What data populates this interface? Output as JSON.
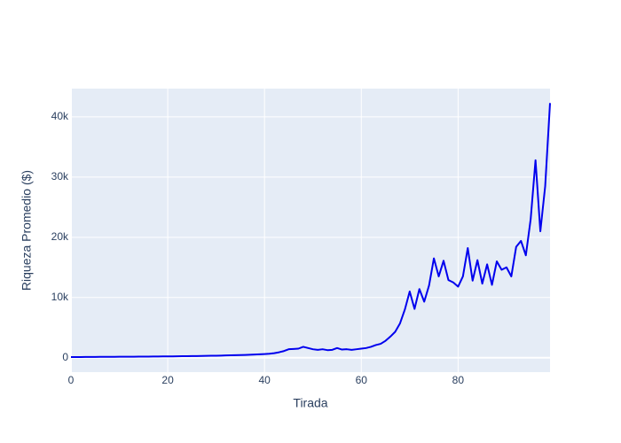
{
  "chart_data": {
    "type": "line",
    "xlabel": "Tirada",
    "ylabel": "Riqueza Promedio ($)",
    "x": [
      0,
      1,
      2,
      3,
      4,
      5,
      6,
      7,
      8,
      9,
      10,
      11,
      12,
      13,
      14,
      15,
      16,
      17,
      18,
      19,
      20,
      21,
      22,
      23,
      24,
      25,
      26,
      27,
      28,
      29,
      30,
      31,
      32,
      33,
      34,
      35,
      36,
      37,
      38,
      39,
      40,
      41,
      42,
      43,
      44,
      45,
      46,
      47,
      48,
      49,
      50,
      51,
      52,
      53,
      54,
      55,
      56,
      57,
      58,
      59,
      60,
      61,
      62,
      63,
      64,
      65,
      66,
      67,
      68,
      69,
      70,
      71,
      72,
      73,
      74,
      75,
      76,
      77,
      78,
      79,
      80,
      81,
      82,
      83,
      84,
      85,
      86,
      87,
      88,
      89,
      90,
      91,
      92,
      93,
      94,
      95,
      96,
      97,
      98,
      99
    ],
    "values": [
      100,
      105,
      110,
      115,
      120,
      125,
      130,
      135,
      140,
      145,
      150,
      155,
      160,
      165,
      170,
      180,
      185,
      190,
      200,
      205,
      210,
      220,
      230,
      240,
      250,
      260,
      270,
      290,
      300,
      320,
      330,
      350,
      370,
      390,
      410,
      430,
      460,
      490,
      520,
      560,
      600,
      650,
      750,
      900,
      1100,
      1400,
      1450,
      1500,
      1800,
      1600,
      1400,
      1300,
      1400,
      1250,
      1300,
      1600,
      1350,
      1400,
      1300,
      1400,
      1500,
      1600,
      1800,
      2100,
      2300,
      2800,
      3500,
      4300,
      5700,
      8000,
      11000,
      8100,
      11400,
      9300,
      12000,
      16500,
      13500,
      16100,
      12900,
      12500,
      11800,
      13500,
      18200,
      12800,
      16200,
      12300,
      15500,
      12100,
      16000,
      14600,
      15000,
      13500,
      18400,
      19400,
      17000,
      23000,
      32800,
      21000,
      28500,
      42300
    ],
    "color": "#0000ee",
    "xlim": [
      0,
      99
    ],
    "ylim": [
      -2400,
      44700
    ],
    "xticks": [
      0,
      20,
      40,
      60,
      80
    ],
    "yticks": [
      0,
      {
        "value": 10000,
        "label": "10k"
      },
      {
        "value": 20000,
        "label": "20k"
      },
      {
        "value": 30000,
        "label": "30k"
      },
      {
        "value": 40000,
        "label": "40k"
      }
    ],
    "grid": true
  }
}
